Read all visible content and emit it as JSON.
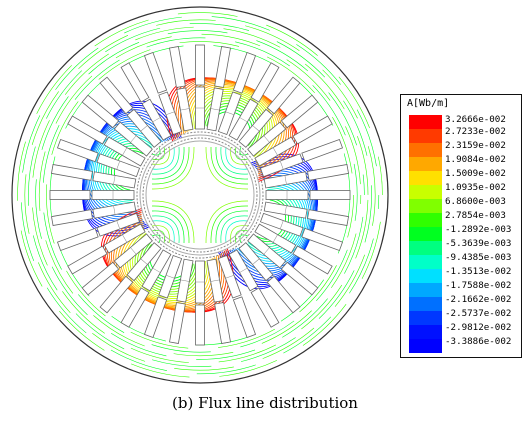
{
  "figure": {
    "caption": "(b) Flux line distribution",
    "legend": {
      "title": "A[Wb/m]",
      "values": [
        "3.2666e-002",
        "2.7233e-002",
        "2.3159e-002",
        "1.9084e-002",
        "1.5009e-002",
        "1.0935e-002",
        "6.8600e-003",
        "2.7854e-003",
        "-1.2892e-003",
        "-5.3639e-003",
        "-9.4385e-003",
        "-1.3513e-002",
        "-1.7588e-002",
        "-2.1662e-002",
        "-2.5737e-002",
        "-2.9812e-002",
        "-3.3886e-002"
      ],
      "colors": [
        "#ff0000",
        "#ff3a00",
        "#ff7000",
        "#ffa800",
        "#ffe000",
        "#c8ff00",
        "#80ff00",
        "#30ff00",
        "#00ff20",
        "#00ff80",
        "#00ffc8",
        "#00e0ff",
        "#00a8ff",
        "#0070ff",
        "#0038ff",
        "#0010ff",
        "#0000ff"
      ]
    }
  }
}
